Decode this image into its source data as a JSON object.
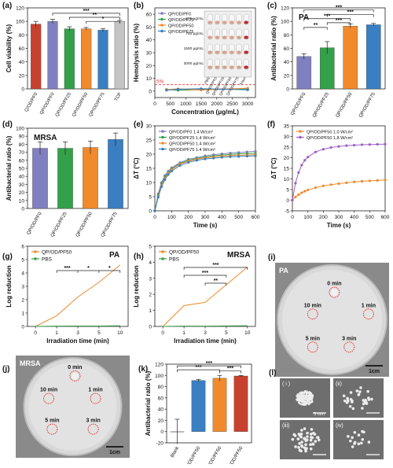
{
  "colors": {
    "purple": "#8080c0",
    "blue": "#3a7fc1",
    "green": "#35a04a",
    "orange": "#f08a2c",
    "grey": "#c4c4c4",
    "red": "#c8412f",
    "dish": "#d6d6d6",
    "micro_bg": "#6e6e6e",
    "circle": "#e23a3a",
    "hline": "#e53935"
  },
  "labels": {
    "a": "(a)",
    "b": "(b)",
    "c": "(c)",
    "d": "(d)",
    "e": "(e)",
    "f": "(f)",
    "g": "(g)",
    "h": "(h)",
    "i": "(i)",
    "j": "(j)",
    "k": "(k)",
    "l": "(l)"
  },
  "sig": "***",
  "sig_a": [
    "***",
    "**",
    "*"
  ],
  "sig_c": [
    "***",
    "***",
    "***",
    "***",
    "**"
  ],
  "sig_g": [
    "***",
    "*",
    "*"
  ],
  "sig_h": [
    "***",
    "***",
    "**"
  ],
  "sig_k": [
    "***",
    "***",
    "***"
  ],
  "chart_data": [
    {
      "panel": "a",
      "type": "bar",
      "ylabel": "Cell viability (%)",
      "categories": [
        "Q/OD/PF0",
        "QP/OD/PF0",
        "QP/OD/PF25",
        "QP/OD/PF50",
        "QP/OD/PF75",
        "TCP"
      ],
      "values": [
        96,
        100,
        89,
        89,
        87,
        100
      ],
      "errors": [
        4,
        3,
        3,
        2,
        2,
        1.5
      ],
      "colors": [
        "#c8412f",
        "#8080c0",
        "#35a04a",
        "#f08a2c",
        "#3a7fc1",
        "#c4c4c4"
      ],
      "ylim": [
        0,
        120
      ],
      "yticks": [
        0,
        20,
        40,
        60,
        80,
        100,
        120
      ]
    },
    {
      "panel": "b",
      "type": "line",
      "xlabel": "Concentration (μg/mL)",
      "ylabel": "Hemolysis ratio (%)",
      "x": [
        375,
        750,
        1500,
        3000
      ],
      "series": [
        {
          "name": "QP/OD/PF0",
          "values": [
            1.0,
            1.3,
            1.5,
            2.0
          ]
        },
        {
          "name": "QP/OD/PF25",
          "values": [
            1.4,
            0.6,
            1.2,
            1.6
          ]
        },
        {
          "name": "QP/OD/PF50",
          "values": [
            1.2,
            1.8,
            0.8,
            2.3
          ]
        },
        {
          "name": "QP/OD/PF75",
          "values": [
            0.7,
            1.5,
            1.9,
            1.0
          ]
        }
      ],
      "hline": 5,
      "hline_label": "5%",
      "xlim": [
        0,
        3250
      ],
      "xticks": [
        0,
        500,
        1000,
        1500,
        2000,
        2500,
        3000
      ],
      "ylim": [
        -5,
        65
      ],
      "yticks": [
        0,
        10,
        20,
        30,
        40,
        50,
        60
      ],
      "inset_rows": [
        "375 μg/mL",
        "750 μg/mL",
        "1500 μg/mL",
        "3000 μg/mL"
      ],
      "inset_cols": [
        "PBS",
        "QP/OD/PF0",
        "QP/OD/PF25",
        "QP/OD/PF50",
        "QP/OD/PF75",
        "Triton"
      ]
    },
    {
      "panel": "c",
      "type": "bar",
      "title": "PA",
      "ylabel": "Antibacterial ratio (%)",
      "categories": [
        "QP/OD/PF0",
        "QP/OD/PF25",
        "QP/OD/PF50",
        "QP/OD/PF75"
      ],
      "values": [
        48,
        61,
        93,
        95
      ],
      "errors": [
        4,
        9,
        3,
        2
      ],
      "colors": [
        "#8080c0",
        "#35a04a",
        "#f08a2c",
        "#3a7fc1"
      ],
      "ylim": [
        0,
        120
      ],
      "yticks": [
        0,
        20,
        40,
        60,
        80,
        100,
        120
      ]
    },
    {
      "panel": "d",
      "type": "bar",
      "title": "MRSA",
      "ylabel": "Antibacterial ratio (%)",
      "categories": [
        "QP/OD/PF0",
        "QP/OD/PF25",
        "QP/OD/PF50",
        "QP/OD/PF75"
      ],
      "values": [
        75,
        75,
        76,
        86
      ],
      "errors": [
        8,
        8,
        8,
        8
      ],
      "colors": [
        "#8080c0",
        "#35a04a",
        "#f08a2c",
        "#3a7fc1"
      ],
      "ylim": [
        0,
        100
      ],
      "yticks": [
        0,
        10,
        20,
        30,
        40,
        50,
        60,
        70,
        80,
        90,
        100
      ]
    },
    {
      "panel": "e",
      "type": "line",
      "xlabel": "Time (s)",
      "ylabel": "ΔT (°C)",
      "x": [
        0,
        20,
        40,
        60,
        80,
        100,
        150,
        200,
        250,
        300,
        350,
        400,
        450,
        500,
        550,
        600
      ],
      "series": [
        {
          "name": "QP/OD/PF0 1.4 W/cm²",
          "color": "#8080c0",
          "values": [
            0,
            6,
            10,
            12.5,
            14,
            15.2,
            17,
            18.2,
            18.8,
            19.4,
            19.8,
            20.1,
            20.4,
            20.6,
            20.8,
            21
          ]
        },
        {
          "name": "QP/OD/PF25 1.4 W/cm²",
          "color": "#35a04a",
          "values": [
            0,
            5.5,
            9.5,
            12,
            13.5,
            14.8,
            16.7,
            17.8,
            18.5,
            19,
            19.4,
            19.7,
            19.9,
            20.1,
            20.2,
            20.3
          ]
        },
        {
          "name": "QP/OD/PF50 1.4 W/cm²",
          "color": "#f08a2c",
          "values": [
            0,
            5,
            9,
            11.5,
            13.2,
            14.5,
            16.5,
            17.5,
            18.2,
            18.7,
            19,
            19.3,
            19.5,
            19.6,
            19.7,
            19.8
          ]
        },
        {
          "name": "QP/OD/PF75 1.4 W/cm²",
          "color": "#3a7fc1",
          "values": [
            0,
            4.8,
            8.5,
            11,
            12.8,
            14,
            16,
            17.1,
            17.8,
            18.3,
            18.6,
            18.9,
            19.1,
            19.2,
            19.3,
            19.4
          ]
        }
      ],
      "xlim": [
        0,
        600
      ],
      "xticks": [
        0,
        100,
        200,
        300,
        400,
        500,
        600
      ],
      "ylim": [
        0,
        30
      ],
      "yticks": [
        0,
        5,
        10,
        15,
        20,
        25,
        30
      ]
    },
    {
      "panel": "f",
      "type": "line",
      "xlabel": "Time (s)",
      "ylabel": "ΔT (°C)",
      "x": [
        0,
        20,
        40,
        60,
        80,
        100,
        150,
        200,
        250,
        300,
        350,
        400,
        450,
        500,
        550,
        600
      ],
      "series": [
        {
          "name": "QP/OD/PF50 1.0 W/cm²",
          "color": "#f08a2c",
          "values": [
            0,
            1.5,
            2.6,
            3.5,
            4.2,
            4.8,
            5.9,
            6.7,
            7.3,
            7.8,
            8.2,
            8.6,
            8.9,
            9.1,
            9.3,
            9.5
          ]
        },
        {
          "name": "QP/OD/PF50 1.8 W/cm²",
          "color": "#9a5fc8",
          "values": [
            0,
            8,
            13,
            16.5,
            18.8,
            20.3,
            22.7,
            24,
            24.8,
            25.3,
            25.7,
            25.9,
            26.1,
            26.2,
            26.3,
            26.4
          ]
        }
      ],
      "xlim": [
        0,
        600
      ],
      "xticks": [
        0,
        100,
        200,
        300,
        400,
        500,
        600
      ],
      "ylim": [
        -5,
        35
      ],
      "yticks": [
        -5,
        0,
        5,
        10,
        15,
        20,
        25,
        30,
        35
      ]
    },
    {
      "panel": "g",
      "type": "line",
      "title": "PA",
      "xlabel": "Irradiation time (min)",
      "ylabel": "Log reduction",
      "categories": [
        "0",
        "1",
        "3",
        "5",
        "10"
      ],
      "series": [
        {
          "name": "QP/OD/PF50",
          "color": "#f08a2c",
          "values": [
            0,
            0.8,
            2.2,
            3.3,
            4.6
          ]
        },
        {
          "name": "PBS",
          "color": "#35a04a",
          "values": [
            0,
            0.02,
            0.03,
            0.03,
            0.05
          ]
        }
      ],
      "ylim": [
        0,
        6
      ],
      "yticks": [
        0,
        1,
        2,
        3,
        4,
        5,
        6
      ]
    },
    {
      "panel": "h",
      "type": "line",
      "title": "MRSA",
      "xlabel": "Irradiation time (min)",
      "ylabel": "Log reduction",
      "categories": [
        "0",
        "1",
        "3",
        "5",
        "10"
      ],
      "series": [
        {
          "name": "QP/OD/PF50",
          "color": "#f08a2c",
          "values": [
            0,
            1.3,
            1.5,
            2.6,
            3.7
          ]
        },
        {
          "name": "PBS",
          "color": "#35a04a",
          "values": [
            0,
            0.02,
            0.02,
            0.03,
            0.04
          ]
        }
      ],
      "ylim": [
        0,
        5
      ],
      "yticks": [
        0,
        1,
        2,
        3,
        4,
        5
      ]
    },
    {
      "panel": "k",
      "type": "bar",
      "ylabel": "Antibacterial ratio (%)",
      "categories": [
        "Blank",
        "QP/OD/PF50",
        "QP/OD/PF50",
        "NIR-QP/OD/PF50"
      ],
      "values": [
        0,
        91,
        95,
        99
      ],
      "errors": [
        22,
        2,
        5,
        1
      ],
      "colors": [
        "#c4c4c4",
        "#3a7fc1",
        "#f08a2c",
        "#c8412f"
      ],
      "ylim": [
        -20,
        120
      ],
      "yticks": [
        -20,
        0,
        20,
        40,
        60,
        80,
        100,
        120
      ]
    }
  ],
  "photo_i": {
    "title": "PA",
    "scale": "1cm",
    "times": [
      "0 min",
      "1 min",
      "3 min",
      "5 min",
      "10 min"
    ]
  },
  "photo_j": {
    "title": "MRSA",
    "scale": "1cm",
    "times": [
      "0 min",
      "1 min",
      "3 min",
      "5 min",
      "10 min"
    ]
  },
  "micro": {
    "tiles": [
      "( i )",
      "(ii)",
      "(iii)",
      "(iv)"
    ],
    "scale": "5 mm"
  }
}
